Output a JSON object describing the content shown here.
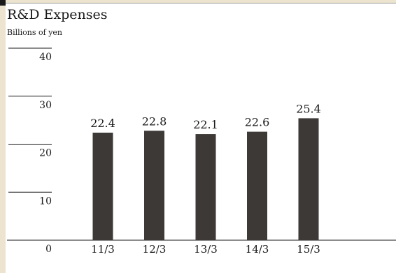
{
  "chart_data": {
    "type": "bar",
    "title": "R&D Expenses",
    "ylabel": "Billions of yen",
    "categories": [
      "11/3",
      "12/3",
      "13/3",
      "14/3",
      "15/3"
    ],
    "values": [
      22.4,
      22.8,
      22.1,
      22.6,
      25.4
    ],
    "value_labels": [
      "22.4",
      "22.8",
      "22.1",
      "22.6",
      "25.4"
    ],
    "y_ticks": [
      "0",
      "10",
      "20",
      "30",
      "40"
    ],
    "ylim": [
      0,
      40
    ],
    "grid": false,
    "legend": "none",
    "colors": {
      "bar": "#3d3937",
      "text": "#1a1a1a",
      "accent_strip": "#ece4cf"
    }
  }
}
